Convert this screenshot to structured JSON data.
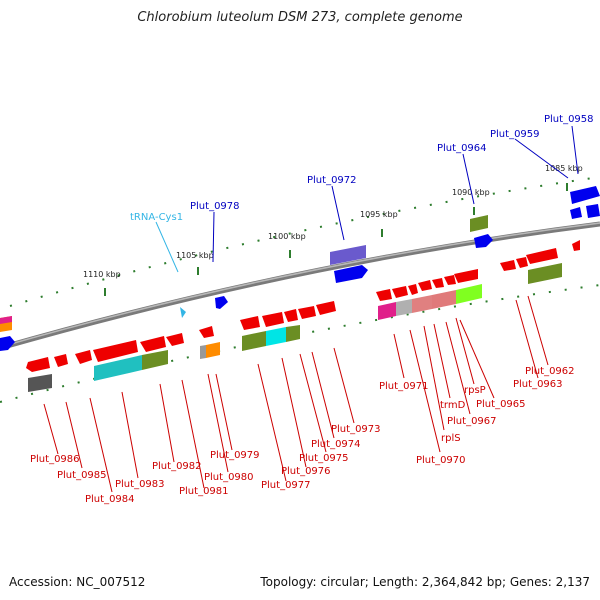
{
  "title": "Chlorobium luteolum DSM 273, complete genome",
  "footer": {
    "accession": "Accession: NC_007512",
    "stats": "Topology: circular; Length: 2,364,842 bp; Genes: 2,137"
  },
  "colors": {
    "backbone": "#808080",
    "upper_label": "#0000c0",
    "lower_label": "#cc0000",
    "trna_label": "#33b5e5",
    "tick": "#2e7d2e",
    "kbp": "#222222"
  },
  "scale_labels": [
    "1110 kbp",
    "1105 kbp",
    "1100 kbp",
    "1095 kbp",
    "1090 kbp",
    "1085 kbp"
  ],
  "upper_labels": [
    "Plut_0958",
    "Plut_0959",
    "Plut_0964",
    "Plut_0972",
    "Plut_0978",
    "tRNA-Cys1"
  ],
  "lower_labels": [
    "Plut_0962",
    "Plut_0963",
    "Plut_0965",
    "rpsP",
    "Plut_0967",
    "trmD",
    "Plut_0971",
    "rplS",
    "Plut_0970",
    "Plut_0973",
    "Plut_0974",
    "Plut_0975",
    "Plut_0976",
    "Plut_0977",
    "Plut_0979",
    "Plut_0980",
    "Plut_0981",
    "Plut_0982",
    "Plut_0983",
    "Plut_0984",
    "Plut_0985",
    "Plut_0986"
  ]
}
